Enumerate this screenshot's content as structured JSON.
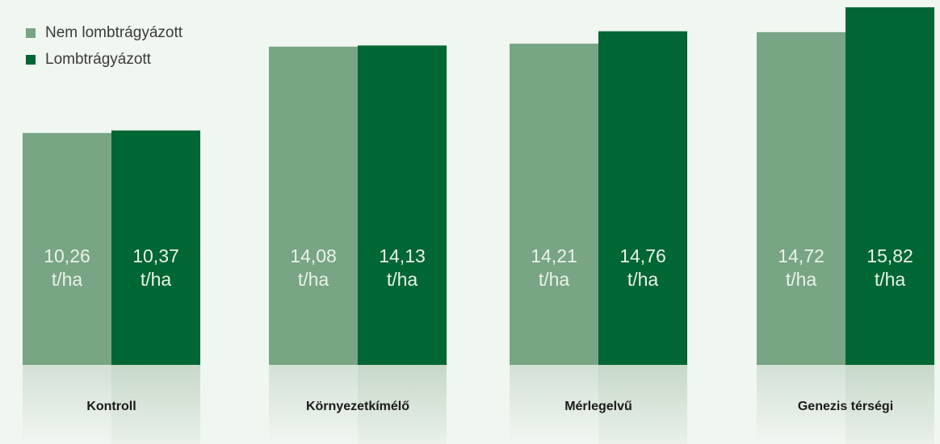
{
  "chart_data": {
    "type": "bar",
    "categories": [
      "Kontroll",
      "Környezetkímélő",
      "Mérlegelvű",
      "Genezis térségi"
    ],
    "unit": "t/ha",
    "series": [
      {
        "name": "Nem lombtrágyázott",
        "color": "#78a583",
        "values": [
          10.26,
          14.08,
          14.21,
          14.72
        ],
        "value_labels": [
          "10,26",
          "14,08",
          "14,21",
          "14,72"
        ]
      },
      {
        "name": "Lombtrágyázott",
        "color": "#006633",
        "values": [
          10.37,
          14.13,
          14.76,
          15.82
        ],
        "value_labels": [
          "10,37",
          "14,13",
          "14,76",
          "15,82"
        ]
      }
    ],
    "legend": "top-left"
  }
}
